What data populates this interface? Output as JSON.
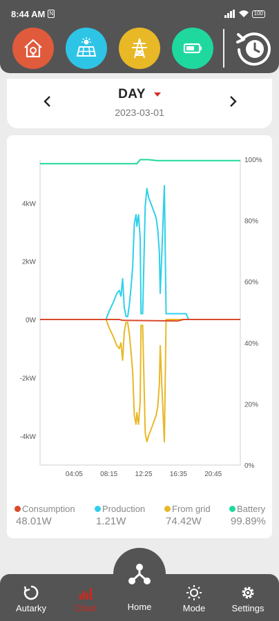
{
  "status_bar": {
    "time": "8:44 AM",
    "battery": "100"
  },
  "top_icons": [
    {
      "name": "home-energy",
      "color": "#e05a3c"
    },
    {
      "name": "solar-panel",
      "color": "#2ec4e6"
    },
    {
      "name": "power-grid",
      "color": "#e8b826"
    },
    {
      "name": "battery",
      "color": "#1ed89e"
    }
  ],
  "period": {
    "label": "DAY",
    "date": "2023-03-01"
  },
  "chart_data": {
    "type": "line",
    "x_ticks": [
      "04:05",
      "08:15",
      "12:25",
      "16:35",
      "20:45"
    ],
    "y_left_ticks": [
      "4kW",
      "2kW",
      "0W",
      "-2kW",
      "-4kW"
    ],
    "y_right_ticks": [
      "100%",
      "80%",
      "60%",
      "40%",
      "20%",
      "0%"
    ],
    "ylim_left_kw": [
      -5.0,
      5.5
    ],
    "ylim_right_pct": [
      0,
      100
    ],
    "series": [
      {
        "name": "Consumption",
        "color": "#d94a2b",
        "axis": "left",
        "points": [
          [
            0,
            0
          ],
          [
            9.5,
            0
          ],
          [
            9.9,
            -0.03
          ],
          [
            16.5,
            -0.05
          ],
          [
            17.2,
            0
          ],
          [
            23.99,
            0
          ]
        ]
      },
      {
        "name": "Production",
        "color": "#2ed0ea",
        "axis": "left",
        "points": [
          [
            0,
            0
          ],
          [
            7.9,
            0
          ],
          [
            8.3,
            0.3
          ],
          [
            8.8,
            0.6
          ],
          [
            9.2,
            0.9
          ],
          [
            9.5,
            1.0
          ],
          [
            9.7,
            0.8
          ],
          [
            9.9,
            1.4
          ],
          [
            10.1,
            0.4
          ],
          [
            10.3,
            0.1
          ],
          [
            10.5,
            0.1
          ],
          [
            10.7,
            0.5
          ],
          [
            10.9,
            1.1
          ],
          [
            11.1,
            1.8
          ],
          [
            11.3,
            3.3
          ],
          [
            11.5,
            3.6
          ],
          [
            11.6,
            3.2
          ],
          [
            11.8,
            3.6
          ],
          [
            12.0,
            2.8
          ],
          [
            12.1,
            0.2
          ],
          [
            12.3,
            0.2
          ],
          [
            12.6,
            3.9
          ],
          [
            12.8,
            4.5
          ],
          [
            13.0,
            4.2
          ],
          [
            13.4,
            3.9
          ],
          [
            13.9,
            3.5
          ],
          [
            14.1,
            3.1
          ],
          [
            14.3,
            2.3
          ],
          [
            14.4,
            0.9
          ],
          [
            14.6,
            2.3
          ],
          [
            14.9,
            4.6
          ],
          [
            15.1,
            0.2
          ],
          [
            17.5,
            0.2
          ],
          [
            17.8,
            0
          ],
          [
            23.99,
            0
          ]
        ]
      },
      {
        "name": "From grid",
        "color": "#e8b826",
        "axis": "left",
        "points": [
          [
            0,
            0
          ],
          [
            7.9,
            0
          ],
          [
            8.3,
            -0.3
          ],
          [
            8.8,
            -0.6
          ],
          [
            9.2,
            -0.9
          ],
          [
            9.5,
            -1.0
          ],
          [
            9.7,
            -0.8
          ],
          [
            9.9,
            -1.4
          ],
          [
            10.1,
            -0.4
          ],
          [
            10.3,
            -0.1
          ],
          [
            10.5,
            -0.1
          ],
          [
            10.7,
            -0.5
          ],
          [
            10.9,
            -1.1
          ],
          [
            11.1,
            -1.8
          ],
          [
            11.3,
            -3.3
          ],
          [
            11.5,
            -3.6
          ],
          [
            11.6,
            -3.2
          ],
          [
            11.8,
            -3.6
          ],
          [
            12.0,
            -2.8
          ],
          [
            12.1,
            -0.2
          ],
          [
            12.3,
            -0.2
          ],
          [
            12.6,
            -3.9
          ],
          [
            12.8,
            -4.2
          ],
          [
            13.0,
            -4.0
          ],
          [
            13.4,
            -3.7
          ],
          [
            13.9,
            -3.3
          ],
          [
            14.1,
            -3.0
          ],
          [
            14.3,
            -2.2
          ],
          [
            14.4,
            -0.9
          ],
          [
            14.6,
            -2.3
          ],
          [
            14.9,
            -4.2
          ],
          [
            15.1,
            0
          ],
          [
            23.99,
            0
          ]
        ]
      },
      {
        "name": "Battery",
        "color": "#1ed89e",
        "axis": "right",
        "points": [
          [
            0,
            98.6
          ],
          [
            11.6,
            98.6
          ],
          [
            12.0,
            99.9
          ],
          [
            13.0,
            99.9
          ],
          [
            14.0,
            99.6
          ],
          [
            23.99,
            99.6
          ]
        ]
      }
    ]
  },
  "legend": [
    {
      "label": "Consumption",
      "value": "48.01W",
      "color": "#d94a2b"
    },
    {
      "label": "Production",
      "value": "1.21W",
      "color": "#2ed0ea"
    },
    {
      "label": "From grid",
      "value": "74.42W",
      "color": "#e8b826"
    },
    {
      "label": "Battery",
      "value": "99.89%",
      "color": "#1ed89e"
    }
  ],
  "nav": {
    "autarky": "Autarky",
    "chart": "Chart",
    "home": "Home",
    "mode": "Mode",
    "settings": "Settings"
  }
}
